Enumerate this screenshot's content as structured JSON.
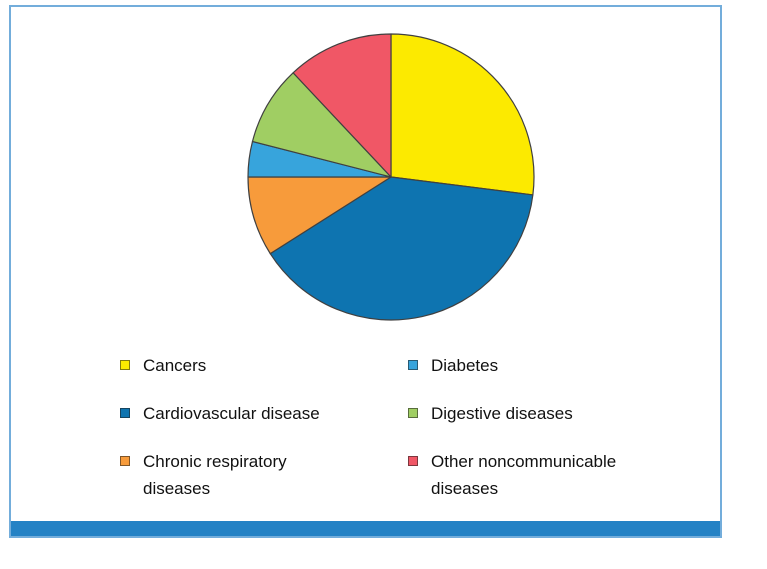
{
  "chart_data": {
    "type": "pie",
    "title": "",
    "start_angle_deg_from_12_oclock": 0,
    "direction": "clockwise",
    "slices": [
      {
        "label": "Cancers",
        "value": 27,
        "color": "#FCEA00"
      },
      {
        "label": "Cardiovascular disease",
        "value": 39,
        "color": "#0E74B0"
      },
      {
        "label": "Chronic respiratory diseases",
        "value": 9,
        "color": "#F79B3B"
      },
      {
        "label": "Diabetes",
        "value": 4,
        "color": "#37A4DC"
      },
      {
        "label": "Digestive diseases",
        "value": 9,
        "color": "#A0CE63"
      },
      {
        "label": "Other noncommunicable diseases",
        "value": 12,
        "color": "#F05766"
      }
    ],
    "note": "values are percentages of the whole, estimated from slice angles; no numeric labels are shown in the image",
    "legend_position": "bottom",
    "legend_columns": 2
  },
  "pie": {
    "outline_color": "#404040",
    "outline_width": 1.2
  },
  "frame": {
    "border_color": "#73ADDB",
    "bottom_bar_color": "#2482C5",
    "background": "#FFFFFF"
  }
}
